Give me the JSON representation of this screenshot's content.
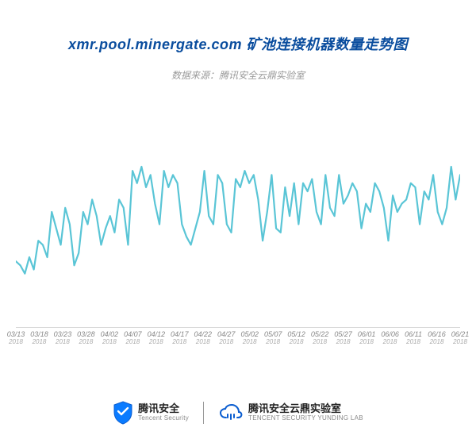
{
  "title": "xmr.pool.minergate.com 矿池连接机器数量走势图",
  "subtitle": "数据来源：腾讯安全云鼎实验室",
  "chart": {
    "type": "line",
    "line_color": "#5ac5d6",
    "line_width": 2.2,
    "background_color": "#ffffff",
    "axis_line_color": "#d8d8d8",
    "tick_font_color": "#888888",
    "tick_year_color": "#aaaaaa",
    "tick_fontsize": 9,
    "ylim": [
      0,
      100
    ],
    "x_ticks": [
      {
        "date": "03/13",
        "year": "2018"
      },
      {
        "date": "03/18",
        "year": "2018"
      },
      {
        "date": "03/23",
        "year": "2018"
      },
      {
        "date": "03/28",
        "year": "2018"
      },
      {
        "date": "04/02",
        "year": "2018"
      },
      {
        "date": "04/07",
        "year": "2018"
      },
      {
        "date": "04/12",
        "year": "2018"
      },
      {
        "date": "04/17",
        "year": "2018"
      },
      {
        "date": "04/22",
        "year": "2018"
      },
      {
        "date": "04/27",
        "year": "2018"
      },
      {
        "date": "05/02",
        "year": "2018"
      },
      {
        "date": "05/07",
        "year": "2018"
      },
      {
        "date": "05/12",
        "year": "2018"
      },
      {
        "date": "05/22",
        "year": "2018"
      },
      {
        "date": "05/27",
        "year": "2018"
      },
      {
        "date": "06/01",
        "year": "2018"
      },
      {
        "date": "06/06",
        "year": "2018"
      },
      {
        "date": "06/11",
        "year": "2018"
      },
      {
        "date": "06/16",
        "year": "2018"
      },
      {
        "date": "06/21",
        "year": "2018"
      }
    ],
    "values": [
      32,
      30,
      26,
      34,
      28,
      42,
      40,
      34,
      56,
      48,
      40,
      58,
      50,
      30,
      36,
      56,
      50,
      62,
      54,
      40,
      48,
      54,
      46,
      62,
      58,
      40,
      76,
      70,
      78,
      68,
      74,
      60,
      50,
      76,
      68,
      74,
      70,
      50,
      44,
      40,
      48,
      56,
      76,
      54,
      50,
      74,
      70,
      50,
      46,
      72,
      68,
      76,
      70,
      74,
      62,
      42,
      56,
      74,
      48,
      46,
      68,
      54,
      70,
      50,
      70,
      66,
      72,
      56,
      50,
      74,
      58,
      54,
      74,
      60,
      64,
      70,
      66,
      48,
      60,
      56,
      70,
      66,
      58,
      42,
      64,
      56,
      60,
      62,
      70,
      68,
      50,
      66,
      62,
      74,
      56,
      50,
      58,
      78,
      62,
      74
    ]
  },
  "footer": {
    "brand1": {
      "cn": "腾讯安全",
      "en": "Tencent Security",
      "logo_bg": "#0a7bff",
      "logo_border": "#0a5dd0"
    },
    "brand2": {
      "cn": "腾讯安全云鼎实验室",
      "en": "TENCENT SECURITY YUNDING LAB",
      "logo_color": "#0a5dd0"
    },
    "divider_color": "#999999"
  }
}
